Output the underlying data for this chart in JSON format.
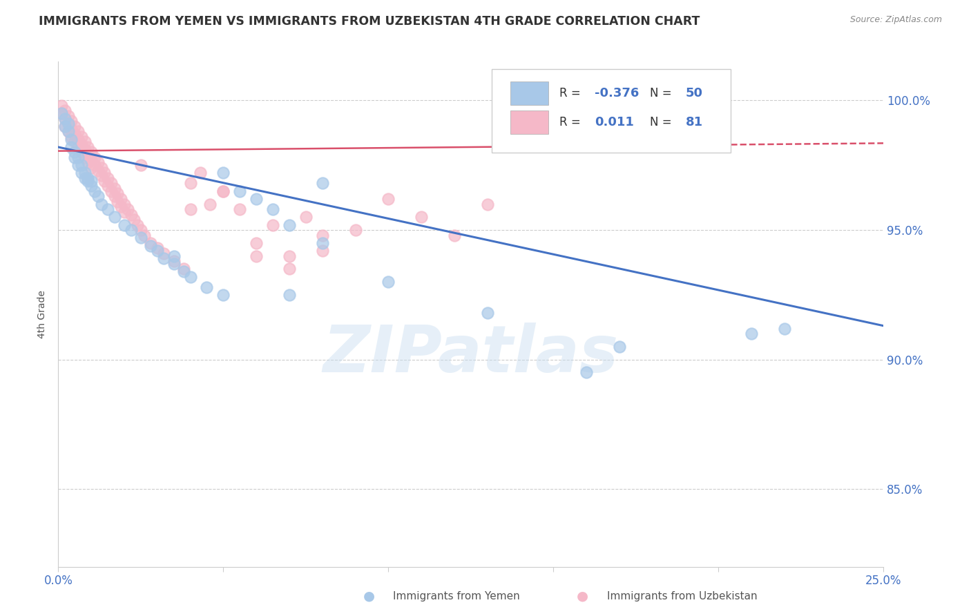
{
  "title": "IMMIGRANTS FROM YEMEN VS IMMIGRANTS FROM UZBEKISTAN 4TH GRADE CORRELATION CHART",
  "source": "Source: ZipAtlas.com",
  "ylabel": "4th Grade",
  "xlim": [
    0.0,
    0.25
  ],
  "ylim": [
    82.0,
    101.5
  ],
  "legend_R_yemen": "-0.376",
  "legend_N_yemen": "50",
  "legend_R_uzbekistan": "0.011",
  "legend_N_uzbekistan": "81",
  "color_yemen": "#a8c8e8",
  "color_uzbekistan": "#f5b8c8",
  "trendline_yemen_color": "#4472c4",
  "trendline_uzbekistan_color": "#d94f6a",
  "background_color": "#ffffff",
  "watermark": "ZIPatlas",
  "yemen_trendline_x0": 0.0,
  "yemen_trendline_y0": 98.2,
  "yemen_trendline_x1": 0.25,
  "yemen_trendline_y1": 91.3,
  "uzb_trendline_x0": 0.0,
  "uzb_trendline_y0": 98.05,
  "uzb_trendline_x1": 0.25,
  "uzb_trendline_y1": 98.35,
  "yemen_x": [
    0.001,
    0.002,
    0.002,
    0.003,
    0.003,
    0.004,
    0.004,
    0.005,
    0.005,
    0.006,
    0.006,
    0.007,
    0.007,
    0.008,
    0.008,
    0.009,
    0.009,
    0.01,
    0.01,
    0.011,
    0.012,
    0.013,
    0.015,
    0.017,
    0.02,
    0.022,
    0.025,
    0.028,
    0.03,
    0.032,
    0.035,
    0.038,
    0.04,
    0.045,
    0.05,
    0.055,
    0.06,
    0.065,
    0.07,
    0.08,
    0.035,
    0.07,
    0.1,
    0.13,
    0.21,
    0.05,
    0.08,
    0.16,
    0.17,
    0.22
  ],
  "yemen_y": [
    99.5,
    99.3,
    99.0,
    98.8,
    99.1,
    98.5,
    98.2,
    97.8,
    98.0,
    97.5,
    97.8,
    97.2,
    97.5,
    97.0,
    97.2,
    96.9,
    97.0,
    96.7,
    96.9,
    96.5,
    96.3,
    96.0,
    95.8,
    95.5,
    95.2,
    95.0,
    94.7,
    94.4,
    94.2,
    93.9,
    93.7,
    93.4,
    93.2,
    92.8,
    92.5,
    96.5,
    96.2,
    95.8,
    95.2,
    94.5,
    94.0,
    92.5,
    93.0,
    91.8,
    91.0,
    97.2,
    96.8,
    89.5,
    90.5,
    91.2
  ],
  "uzbekistan_x": [
    0.001,
    0.001,
    0.002,
    0.002,
    0.002,
    0.003,
    0.003,
    0.003,
    0.004,
    0.004,
    0.004,
    0.005,
    0.005,
    0.005,
    0.006,
    0.006,
    0.006,
    0.007,
    0.007,
    0.007,
    0.008,
    0.008,
    0.008,
    0.009,
    0.009,
    0.009,
    0.01,
    0.01,
    0.01,
    0.011,
    0.011,
    0.012,
    0.012,
    0.013,
    0.013,
    0.014,
    0.014,
    0.015,
    0.015,
    0.016,
    0.016,
    0.017,
    0.017,
    0.018,
    0.018,
    0.019,
    0.019,
    0.02,
    0.02,
    0.021,
    0.022,
    0.023,
    0.024,
    0.025,
    0.026,
    0.028,
    0.03,
    0.032,
    0.035,
    0.038,
    0.04,
    0.043,
    0.046,
    0.05,
    0.055,
    0.06,
    0.065,
    0.07,
    0.075,
    0.08,
    0.09,
    0.1,
    0.11,
    0.12,
    0.13,
    0.07,
    0.08,
    0.04,
    0.05,
    0.06,
    0.025
  ],
  "uzbekistan_y": [
    99.8,
    99.5,
    99.6,
    99.3,
    99.0,
    99.4,
    99.1,
    98.8,
    99.2,
    98.9,
    98.6,
    99.0,
    98.7,
    98.4,
    98.8,
    98.5,
    98.2,
    98.6,
    98.3,
    98.0,
    98.4,
    98.1,
    97.8,
    98.2,
    97.9,
    97.6,
    98.0,
    97.7,
    97.4,
    97.8,
    97.5,
    97.6,
    97.3,
    97.4,
    97.1,
    97.2,
    96.9,
    97.0,
    96.7,
    96.8,
    96.5,
    96.6,
    96.3,
    96.4,
    96.1,
    96.2,
    95.9,
    96.0,
    95.7,
    95.8,
    95.6,
    95.4,
    95.2,
    95.0,
    94.8,
    94.5,
    94.3,
    94.1,
    93.8,
    93.5,
    96.8,
    97.2,
    96.0,
    96.5,
    95.8,
    94.5,
    95.2,
    94.0,
    95.5,
    94.8,
    95.0,
    96.2,
    95.5,
    94.8,
    96.0,
    93.5,
    94.2,
    95.8,
    96.5,
    94.0,
    97.5
  ]
}
